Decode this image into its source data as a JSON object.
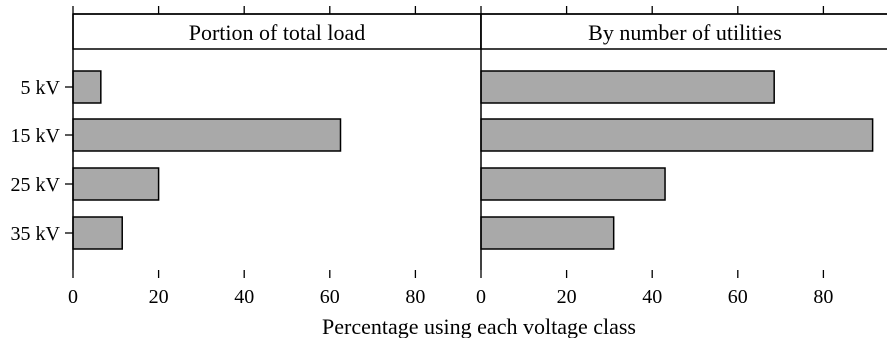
{
  "chart_data": {
    "type": "bar",
    "orientation": "horizontal",
    "categories": [
      "5 kV",
      "15 kV",
      "25 kV",
      "35 kV"
    ],
    "xlabel": "Percentage using each voltage class",
    "xlim": [
      0,
      95
    ],
    "xticks": [
      "0",
      "20",
      "40",
      "60",
      "80"
    ],
    "grid": false,
    "bar_color": "#a9a9a9",
    "panels": [
      {
        "title": "Portion of total load",
        "values": [
          6.5,
          62.5,
          20,
          11.5
        ]
      },
      {
        "title": "By number of utilities",
        "values": [
          68.5,
          91.5,
          43,
          31
        ]
      }
    ]
  }
}
